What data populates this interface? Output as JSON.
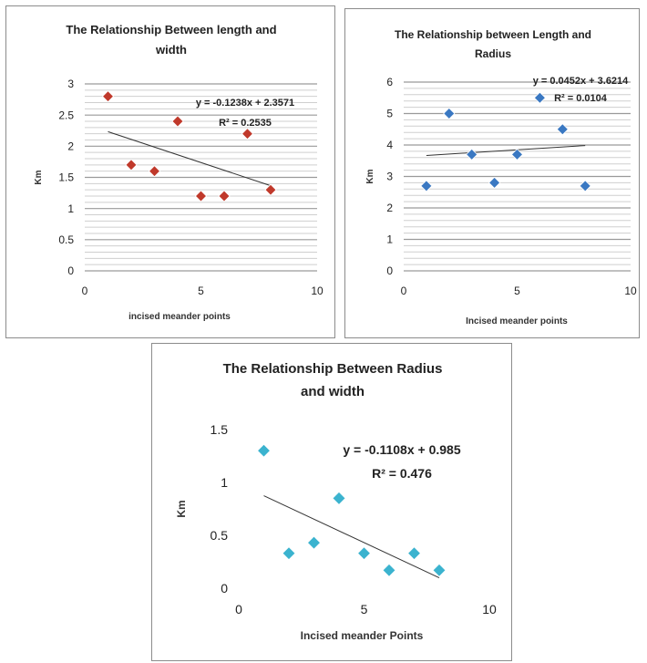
{
  "chart_data": [
    {
      "type": "scatter",
      "title_lines": [
        "The Relationship Between length and",
        "width"
      ],
      "xlabel": "incised meander points",
      "ylabel": "Km",
      "xlim": [
        0,
        10
      ],
      "ylim": [
        0,
        3
      ],
      "xticks": [
        0,
        5,
        10
      ],
      "yticks": [
        0,
        0.5,
        1,
        1.5,
        2,
        2.5,
        3
      ],
      "ytick_labels": [
        "0",
        "0.5",
        "1",
        "1.5",
        "2",
        "2.5",
        "3"
      ],
      "grid": true,
      "marker_color": "#c0392b",
      "x": [
        1,
        2,
        3,
        4,
        5,
        6,
        7,
        8
      ],
      "y": [
        2.8,
        1.7,
        1.6,
        2.4,
        1.2,
        1.2,
        2.2,
        1.3
      ],
      "trendline": {
        "slope": -0.1238,
        "intercept": 2.3571,
        "x_range": [
          1,
          8
        ]
      },
      "equation_text": "y = -0.1238x + 2.3571",
      "r2_text": "R² = 0.2535"
    },
    {
      "type": "scatter",
      "title_lines": [
        "The Relationship between Length and",
        "Radius"
      ],
      "xlabel": "Incised meander points",
      "ylabel": "Km",
      "xlim": [
        0,
        10
      ],
      "ylim": [
        0,
        6
      ],
      "xticks": [
        0,
        5,
        10
      ],
      "yticks": [
        0,
        1,
        2,
        3,
        4,
        5,
        6
      ],
      "ytick_labels": [
        "0",
        "1",
        "2",
        "3",
        "4",
        "5",
        "6"
      ],
      "grid": true,
      "marker_color": "#3a78c2",
      "x": [
        1,
        2,
        3,
        4,
        5,
        6,
        7,
        8
      ],
      "y": [
        2.7,
        5.0,
        3.7,
        2.8,
        3.7,
        5.5,
        4.5,
        2.7
      ],
      "trendline": {
        "slope": 0.0452,
        "intercept": 3.6214,
        "x_range": [
          1,
          8
        ]
      },
      "equation_text": "y = 0.0452x + 3.6214",
      "r2_text": "R² = 0.0104"
    },
    {
      "type": "scatter",
      "title_lines": [
        "The Relationship Between Radius",
        "and width"
      ],
      "xlabel": "Incised meander Points",
      "ylabel": "Km",
      "xlim": [
        0,
        10
      ],
      "ylim": [
        0,
        1.5
      ],
      "xticks": [
        0,
        5,
        10
      ],
      "yticks": [
        0,
        0.5,
        1,
        1.5
      ],
      "ytick_labels": [
        "0",
        "0.5",
        "1",
        "1.5"
      ],
      "grid": false,
      "marker_color": "#3bb3cf",
      "x": [
        1,
        2,
        3,
        4,
        5,
        6,
        7,
        8
      ],
      "y": [
        1.3,
        0.33,
        0.43,
        0.85,
        0.33,
        0.17,
        0.33,
        0.17
      ],
      "trendline": {
        "slope": -0.1108,
        "intercept": 0.985,
        "x_range": [
          1,
          8
        ]
      },
      "equation_text": "y = -0.1108x + 0.985",
      "r2_text": "R² = 0.476"
    }
  ]
}
